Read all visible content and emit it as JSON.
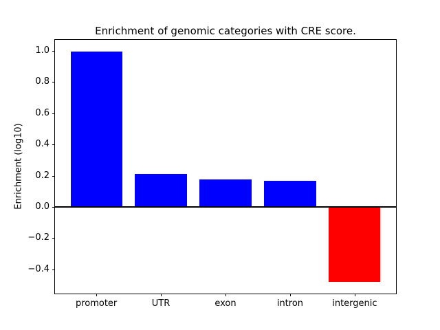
{
  "chart_data": {
    "type": "bar",
    "title": "Enrichment of genomic categories with CRE score.",
    "xlabel": "",
    "ylabel": "Enrichment (log10)",
    "categories": [
      "promoter",
      "UTR",
      "exon",
      "intron",
      "intergenic"
    ],
    "values": [
      0.995,
      0.213,
      0.175,
      0.169,
      -0.48
    ],
    "bar_colors": [
      "#0000ff",
      "#0000ff",
      "#0000ff",
      "#0000ff",
      "#ff0000"
    ],
    "positive_color": "#0000ff",
    "negative_color": "#ff0000",
    "bar_width": 0.8,
    "yticks": [
      1.0,
      0.8,
      0.6,
      0.4,
      0.2,
      0.0,
      -0.2,
      -0.4
    ],
    "ytick_labels": [
      "1.0",
      "0.8",
      "0.6",
      "0.4",
      "0.2",
      "0.0",
      "−0.2",
      "−0.4"
    ],
    "ylim": [
      -0.555,
      1.07
    ],
    "xlim": [
      -0.64,
      4.64
    ],
    "zero_line": true,
    "grid": false,
    "legend": null,
    "background": "#ffffff",
    "spine_color": "#000000"
  }
}
